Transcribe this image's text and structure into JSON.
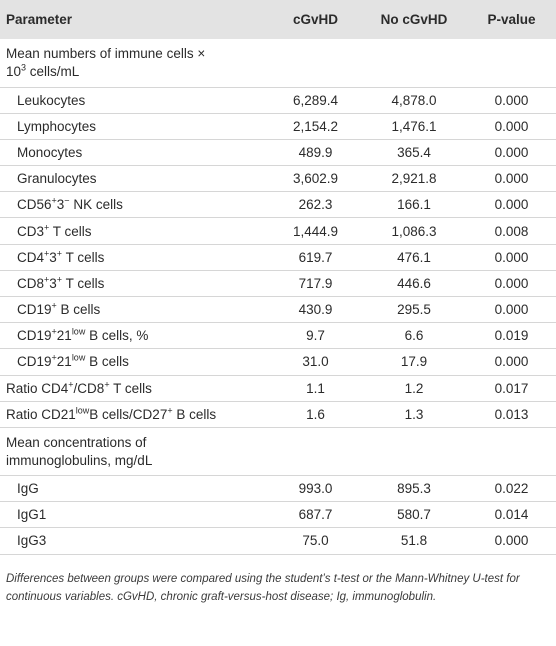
{
  "header": {
    "col1": "Parameter",
    "col2": "cGvHD",
    "col3": "No cGvHD",
    "col4_italic": "P",
    "col4_rest": "-value"
  },
  "section1": {
    "title_a": "Mean numbers of immune cells ×",
    "title_b_base": "10",
    "title_b_sup": "3",
    "title_b_rest": " cells/mL"
  },
  "rows1": [
    {
      "label": "Leukocytes",
      "cgvhd": "6,289.4",
      "no": "4,878.0",
      "p": "0.000"
    },
    {
      "label": "Lymphocytes",
      "cgvhd": "2,154.2",
      "no": "1,476.1",
      "p": "0.000"
    },
    {
      "label": "Monocytes",
      "cgvhd": "489.9",
      "no": "365.4",
      "p": "0.000"
    },
    {
      "label": "Granulocytes",
      "cgvhd": "3,602.9",
      "no": "2,921.8",
      "p": "0.000"
    },
    {
      "label_parts": [
        "CD56",
        "+",
        "3",
        "−",
        " NK cells"
      ],
      "cgvhd": "262.3",
      "no": "166.1",
      "p": "0.000"
    },
    {
      "label_parts": [
        "CD3",
        "+",
        " T cells"
      ],
      "cgvhd": "1,444.9",
      "no": "1,086.3",
      "p": "0.008"
    },
    {
      "label_parts": [
        "CD4",
        "+",
        "3",
        "+",
        " T cells"
      ],
      "cgvhd": "619.7",
      "no": "476.1",
      "p": "0.000"
    },
    {
      "label_parts": [
        "CD8",
        "+",
        "3",
        "+",
        " T cells"
      ],
      "cgvhd": "717.9",
      "no": "446.6",
      "p": "0.000"
    },
    {
      "label_parts": [
        "CD19",
        "+",
        " B cells"
      ],
      "cgvhd": "430.9",
      "no": "295.5",
      "p": "0.000"
    },
    {
      "label_parts": [
        "CD19",
        "+",
        "21",
        "low",
        " B cells, %"
      ],
      "cgvhd": "9.7",
      "no": "6.6",
      "p": "0.019"
    },
    {
      "label_parts": [
        "CD19",
        "+",
        "21",
        "low",
        " B cells"
      ],
      "cgvhd": "31.0",
      "no": "17.9",
      "p": "0.000"
    }
  ],
  "rows_ratio": [
    {
      "label_parts": [
        "Ratio CD4",
        "+",
        "/CD8",
        "+",
        " T cells"
      ],
      "cgvhd": "1.1",
      "no": "1.2",
      "p": "0.017"
    },
    {
      "label_parts": [
        "Ratio CD21",
        "low",
        "B cells/CD27",
        "+",
        " B cells"
      ],
      "cgvhd": "1.6",
      "no": "1.3",
      "p": "0.013"
    }
  ],
  "section2": {
    "title_a": "Mean concentrations of",
    "title_b": "immunoglobulins, mg/dL"
  },
  "rows2": [
    {
      "label": "IgG",
      "cgvhd": "993.0",
      "no": "895.3",
      "p": "0.022"
    },
    {
      "label": "IgG1",
      "cgvhd": "687.7",
      "no": "580.7",
      "p": "0.014"
    },
    {
      "label": "IgG3",
      "cgvhd": "75.0",
      "no": "51.8",
      "p": "0.000"
    }
  ],
  "footnote": "Differences between groups were compared using the student’s t-test or the Mann-Whitney U-test for continuous variables. cGvHD, chronic graft-versus-host disease; Ig, immunoglobulin."
}
